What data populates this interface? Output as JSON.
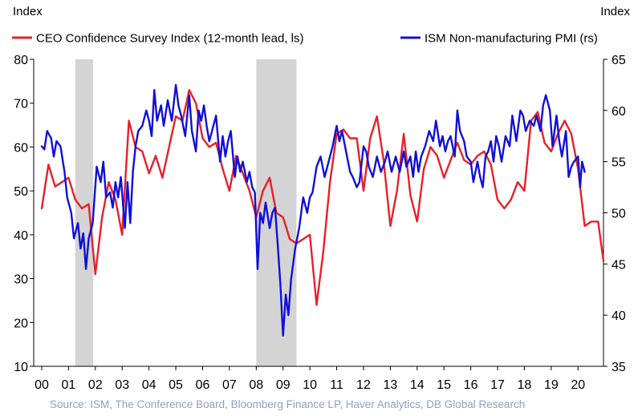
{
  "chart_data": {
    "type": "line",
    "left_axis_title": "Index",
    "right_axis_title": "Index",
    "x_ticks": [
      "00",
      "01",
      "02",
      "03",
      "04",
      "05",
      "06",
      "07",
      "08",
      "09",
      "10",
      "11",
      "12",
      "13",
      "14",
      "15",
      "16",
      "17",
      "18",
      "19",
      "20"
    ],
    "xlim": [
      2000.0,
      2020.95
    ],
    "y_left": {
      "range": [
        10,
        80
      ],
      "ticks": [
        10,
        20,
        30,
        40,
        50,
        60,
        70,
        80
      ]
    },
    "y_right": {
      "range": [
        35,
        65
      ],
      "ticks": [
        35,
        40,
        45,
        50,
        55,
        60,
        65
      ]
    },
    "recessions": [
      {
        "start": 2001.25,
        "end": 2001.92
      },
      {
        "start": 2008.0,
        "end": 2009.5
      }
    ],
    "legend": [
      {
        "label": "CEO Confidence Survey Index (12-month lead, ls)",
        "color": "#e8202a"
      },
      {
        "label": "ISM Non-manufacturing PMI (rs)",
        "color": "#1010d8"
      }
    ],
    "series": [
      {
        "name": "CEO Confidence Survey Index (12-month lead, ls)",
        "axis": "left",
        "color": "#e8202a",
        "points": [
          [
            2000.0,
            46
          ],
          [
            2000.25,
            56
          ],
          [
            2000.5,
            51
          ],
          [
            2000.75,
            52
          ],
          [
            2001.0,
            53
          ],
          [
            2001.25,
            48
          ],
          [
            2001.5,
            46
          ],
          [
            2001.75,
            47
          ],
          [
            2002.0,
            31
          ],
          [
            2002.25,
            44
          ],
          [
            2002.5,
            52
          ],
          [
            2002.75,
            48
          ],
          [
            2003.0,
            40
          ],
          [
            2003.25,
            66
          ],
          [
            2003.5,
            60
          ],
          [
            2003.75,
            59
          ],
          [
            2004.0,
            54
          ],
          [
            2004.25,
            58
          ],
          [
            2004.5,
            53
          ],
          [
            2004.75,
            60
          ],
          [
            2005.0,
            67
          ],
          [
            2005.25,
            66
          ],
          [
            2005.5,
            73
          ],
          [
            2005.75,
            70
          ],
          [
            2006.0,
            62
          ],
          [
            2006.25,
            60
          ],
          [
            2006.5,
            61
          ],
          [
            2006.75,
            55
          ],
          [
            2007.0,
            50
          ],
          [
            2007.25,
            58
          ],
          [
            2007.5,
            54
          ],
          [
            2007.75,
            50
          ],
          [
            2008.0,
            44
          ],
          [
            2008.25,
            50
          ],
          [
            2008.5,
            53
          ],
          [
            2008.75,
            45
          ],
          [
            2009.0,
            44
          ],
          [
            2009.25,
            39
          ],
          [
            2009.5,
            38
          ],
          [
            2009.75,
            39
          ],
          [
            2010.0,
            40
          ],
          [
            2010.25,
            24
          ],
          [
            2010.5,
            36
          ],
          [
            2010.75,
            52
          ],
          [
            2011.0,
            63
          ],
          [
            2011.25,
            64
          ],
          [
            2011.5,
            62
          ],
          [
            2011.75,
            62
          ],
          [
            2012.0,
            50
          ],
          [
            2012.25,
            62
          ],
          [
            2012.5,
            67
          ],
          [
            2012.75,
            57
          ],
          [
            2013.0,
            42
          ],
          [
            2013.25,
            50
          ],
          [
            2013.5,
            63
          ],
          [
            2013.75,
            49
          ],
          [
            2014.0,
            43
          ],
          [
            2014.25,
            55
          ],
          [
            2014.5,
            60
          ],
          [
            2014.75,
            58
          ],
          [
            2015.0,
            53
          ],
          [
            2015.25,
            57
          ],
          [
            2015.5,
            61
          ],
          [
            2015.75,
            57
          ],
          [
            2016.0,
            56
          ],
          [
            2016.25,
            58
          ],
          [
            2016.5,
            59
          ],
          [
            2016.75,
            56
          ],
          [
            2017.0,
            48
          ],
          [
            2017.25,
            46
          ],
          [
            2017.5,
            48
          ],
          [
            2017.75,
            52
          ],
          [
            2018.0,
            50
          ],
          [
            2018.25,
            66
          ],
          [
            2018.5,
            68
          ],
          [
            2018.75,
            61
          ],
          [
            2019.0,
            59
          ],
          [
            2019.25,
            63
          ],
          [
            2019.5,
            66
          ],
          [
            2019.75,
            63
          ],
          [
            2020.0,
            55
          ],
          [
            2020.25,
            42
          ],
          [
            2020.5,
            43
          ],
          [
            2020.75,
            43
          ],
          [
            2020.95,
            34
          ]
        ]
      },
      {
        "name": "ISM Non-manufacturing PMI (rs)",
        "axis": "right",
        "color": "#1010d8",
        "points": [
          [
            2000.0,
            56.5
          ],
          [
            2000.1,
            56.2
          ],
          [
            2000.2,
            58.0
          ],
          [
            2000.35,
            57.3
          ],
          [
            2000.45,
            55.5
          ],
          [
            2000.55,
            57.0
          ],
          [
            2000.7,
            56.5
          ],
          [
            2000.85,
            54.0
          ],
          [
            2000.95,
            51.5
          ],
          [
            2001.1,
            50.0
          ],
          [
            2001.2,
            47.5
          ],
          [
            2001.35,
            49.0
          ],
          [
            2001.45,
            46.5
          ],
          [
            2001.55,
            48.0
          ],
          [
            2001.65,
            44.5
          ],
          [
            2001.75,
            47.5
          ],
          [
            2001.9,
            49.0
          ],
          [
            2002.05,
            54.5
          ],
          [
            2002.2,
            53.0
          ],
          [
            2002.3,
            55.0
          ],
          [
            2002.4,
            51.5
          ],
          [
            2002.55,
            52.0
          ],
          [
            2002.65,
            50.5
          ],
          [
            2002.75,
            53.0
          ],
          [
            2002.85,
            51.5
          ],
          [
            2002.95,
            53.5
          ],
          [
            2003.1,
            48.5
          ],
          [
            2003.2,
            53.0
          ],
          [
            2003.3,
            49.0
          ],
          [
            2003.4,
            54.0
          ],
          [
            2003.5,
            56.5
          ],
          [
            2003.6,
            58.0
          ],
          [
            2003.75,
            58.5
          ],
          [
            2003.9,
            60.0
          ],
          [
            2004.0,
            59.0
          ],
          [
            2004.1,
            57.5
          ],
          [
            2004.2,
            62.0
          ],
          [
            2004.3,
            59.0
          ],
          [
            2004.45,
            60.5
          ],
          [
            2004.55,
            58.5
          ],
          [
            2004.7,
            61.0
          ],
          [
            2004.85,
            59.0
          ],
          [
            2005.0,
            62.5
          ],
          [
            2005.1,
            60.5
          ],
          [
            2005.2,
            59.5
          ],
          [
            2005.35,
            57.5
          ],
          [
            2005.5,
            61.5
          ],
          [
            2005.6,
            58.0
          ],
          [
            2005.75,
            56.0
          ],
          [
            2005.85,
            60.0
          ],
          [
            2005.95,
            59.0
          ],
          [
            2006.05,
            60.5
          ],
          [
            2006.15,
            58.5
          ],
          [
            2006.25,
            57.0
          ],
          [
            2006.35,
            58.0
          ],
          [
            2006.5,
            59.5
          ],
          [
            2006.65,
            55.0
          ],
          [
            2006.75,
            57.5
          ],
          [
            2006.85,
            55.5
          ],
          [
            2006.95,
            57.0
          ],
          [
            2007.05,
            58.0
          ],
          [
            2007.2,
            53.5
          ],
          [
            2007.3,
            55.5
          ],
          [
            2007.4,
            54.0
          ],
          [
            2007.5,
            55.0
          ],
          [
            2007.65,
            53.0
          ],
          [
            2007.75,
            54.0
          ],
          [
            2007.85,
            52.5
          ],
          [
            2007.95,
            52.0
          ],
          [
            2008.05,
            44.5
          ],
          [
            2008.15,
            50.0
          ],
          [
            2008.25,
            49.0
          ],
          [
            2008.35,
            51.0
          ],
          [
            2008.5,
            48.5
          ],
          [
            2008.6,
            50.0
          ],
          [
            2008.7,
            50.5
          ],
          [
            2008.8,
            47.0
          ],
          [
            2008.9,
            43.0
          ],
          [
            2009.0,
            38.0
          ],
          [
            2009.1,
            42.0
          ],
          [
            2009.2,
            40.0
          ],
          [
            2009.3,
            43.5
          ],
          [
            2009.45,
            46.5
          ],
          [
            2009.6,
            48.5
          ],
          [
            2009.75,
            51.5
          ],
          [
            2009.9,
            50.0
          ],
          [
            2010.0,
            51.5
          ],
          [
            2010.1,
            52.0
          ],
          [
            2010.25,
            54.5
          ],
          [
            2010.4,
            55.5
          ],
          [
            2010.55,
            53.5
          ],
          [
            2010.7,
            55.0
          ],
          [
            2010.85,
            56.5
          ],
          [
            2011.0,
            58.5
          ],
          [
            2011.1,
            57.0
          ],
          [
            2011.2,
            58.0
          ],
          [
            2011.35,
            56.0
          ],
          [
            2011.5,
            54.0
          ],
          [
            2011.6,
            53.5
          ],
          [
            2011.75,
            52.5
          ],
          [
            2011.85,
            53.0
          ],
          [
            2012.0,
            56.5
          ],
          [
            2012.1,
            56.0
          ],
          [
            2012.2,
            54.5
          ],
          [
            2012.35,
            53.5
          ],
          [
            2012.5,
            55.5
          ],
          [
            2012.65,
            54.0
          ],
          [
            2012.8,
            55.0
          ],
          [
            2012.9,
            56.0
          ],
          [
            2013.05,
            54.0
          ],
          [
            2013.2,
            55.5
          ],
          [
            2013.35,
            54.0
          ],
          [
            2013.5,
            56.0
          ],
          [
            2013.6,
            54.5
          ],
          [
            2013.75,
            55.5
          ],
          [
            2013.85,
            53.5
          ],
          [
            2013.95,
            56.0
          ],
          [
            2014.05,
            54.0
          ],
          [
            2014.15,
            55.5
          ],
          [
            2014.3,
            56.5
          ],
          [
            2014.45,
            58.0
          ],
          [
            2014.6,
            57.0
          ],
          [
            2014.7,
            59.0
          ],
          [
            2014.85,
            56.5
          ],
          [
            2014.95,
            57.5
          ],
          [
            2015.05,
            56.0
          ],
          [
            2015.15,
            57.0
          ],
          [
            2015.25,
            57.5
          ],
          [
            2015.4,
            55.5
          ],
          [
            2015.5,
            60.0
          ],
          [
            2015.6,
            58.0
          ],
          [
            2015.75,
            57.0
          ],
          [
            2015.85,
            55.5
          ],
          [
            2016.0,
            55.0
          ],
          [
            2016.1,
            53.0
          ],
          [
            2016.25,
            55.0
          ],
          [
            2016.35,
            53.5
          ],
          [
            2016.45,
            52.5
          ],
          [
            2016.55,
            55.5
          ],
          [
            2016.65,
            56.0
          ],
          [
            2016.75,
            57.0
          ],
          [
            2016.85,
            55.0
          ],
          [
            2016.95,
            57.5
          ],
          [
            2017.05,
            56.5
          ],
          [
            2017.15,
            55.0
          ],
          [
            2017.3,
            57.5
          ],
          [
            2017.45,
            56.5
          ],
          [
            2017.55,
            59.5
          ],
          [
            2017.7,
            57.0
          ],
          [
            2017.85,
            60.0
          ],
          [
            2017.95,
            59.5
          ],
          [
            2018.05,
            58.0
          ],
          [
            2018.2,
            59.0
          ],
          [
            2018.35,
            58.5
          ],
          [
            2018.45,
            59.5
          ],
          [
            2018.6,
            58.0
          ],
          [
            2018.7,
            60.5
          ],
          [
            2018.8,
            61.5
          ],
          [
            2018.95,
            60.0
          ],
          [
            2019.05,
            56.5
          ],
          [
            2019.2,
            59.5
          ],
          [
            2019.3,
            57.0
          ],
          [
            2019.4,
            55.5
          ],
          [
            2019.55,
            58.0
          ],
          [
            2019.65,
            53.5
          ],
          [
            2019.75,
            54.5
          ],
          [
            2019.85,
            55.0
          ],
          [
            2020.0,
            55.5
          ],
          [
            2020.08,
            52.5
          ],
          [
            2020.15,
            55.0
          ],
          [
            2020.25,
            54.0
          ]
        ]
      }
    ]
  },
  "source_note": "Source: ISM, The Conference Board, Bloomberg Finance LP, Haver Analytics, DB Global Research"
}
